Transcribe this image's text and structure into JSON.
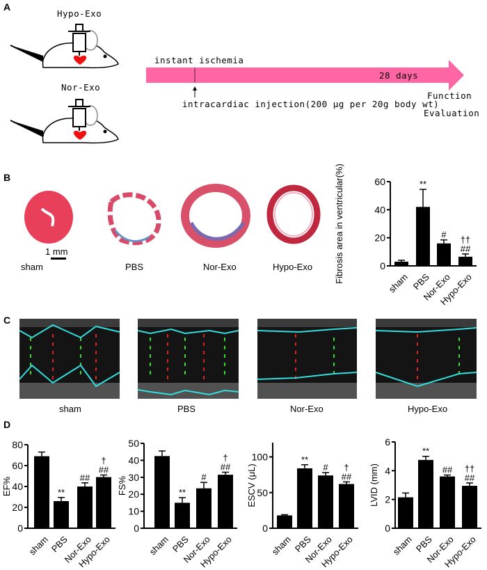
{
  "panels": {
    "a": "A",
    "b": "B",
    "c": "C",
    "d": "D"
  },
  "panel_a": {
    "group_top": "Hypo-Exo",
    "group_bottom": "Nor-Exo",
    "timeline_start": "instant ischemia",
    "timeline_duration": "28 days",
    "injection_note": "intracardiac injection(200 μg per 20g body wt)",
    "endpoint_line1": "Function",
    "endpoint_line2": "Evaluation",
    "timeline_color": "#ff66a3",
    "heart_color": "#ee1111"
  },
  "panel_b": {
    "scale_bar": "1 mm",
    "sections": [
      "sham",
      "PBS",
      "Nor-Exo",
      "Hypo-Exo"
    ]
  },
  "panel_c": {
    "echo_labels": [
      "sham",
      "PBS",
      "Nor-Exo",
      "Hypo-Exo"
    ],
    "trace_color": "#33dddd"
  },
  "chart_data": [
    {
      "id": "fibrosis",
      "type": "bar",
      "categories": [
        "sham",
        "PBS",
        "Nor-Exo",
        "Hypo-Exo"
      ],
      "values": [
        3,
        42,
        16,
        6.5
      ],
      "errors": [
        1,
        12.5,
        2.5,
        2
      ],
      "annotations": [
        "",
        "**",
        "#",
        "††\n##"
      ],
      "ylabel": "Fibrosis area in ventricular(%)",
      "ylim": [
        0,
        60
      ],
      "yticks": [
        0,
        20,
        40,
        60
      ]
    },
    {
      "id": "ef",
      "type": "bar",
      "categories": [
        "sham",
        "PBS",
        "Nor-Exo",
        "Hypo-Exo"
      ],
      "values": [
        69,
        26,
        40,
        49
      ],
      "errors": [
        4,
        3.5,
        3.5,
        2
      ],
      "annotations": [
        "",
        "**",
        "##",
        "†\n##"
      ],
      "ylabel": "EF%",
      "ylim": [
        0,
        80
      ],
      "yticks": [
        0,
        20,
        40,
        60,
        80
      ]
    },
    {
      "id": "fs",
      "type": "bar",
      "categories": [
        "sham",
        "PBS",
        "Nor-Exo",
        "Hypo-Exo"
      ],
      "values": [
        42.5,
        15,
        23.5,
        31.5
      ],
      "errors": [
        3,
        3,
        3.5,
        1.5
      ],
      "annotations": [
        "",
        "**",
        "#",
        "†\n##"
      ],
      "ylabel": "FS%",
      "ylim": [
        0,
        50
      ],
      "yticks": [
        0,
        10,
        20,
        30,
        40,
        50
      ]
    },
    {
      "id": "escv",
      "type": "bar",
      "categories": [
        "sham",
        "PBS",
        "Nor-Exo",
        "Hypo-Exo"
      ],
      "values": [
        18,
        84,
        74,
        62
      ],
      "errors": [
        1,
        5,
        4,
        3
      ],
      "annotations": [
        "",
        "**",
        "#",
        "†\n##"
      ],
      "ylabel": "ESCV (μL)",
      "ylim": [
        0,
        120
      ],
      "yticks": [
        0,
        50,
        100
      ]
    },
    {
      "id": "lvid",
      "type": "bar",
      "categories": [
        "sham",
        "PBS",
        "Nor-Exo",
        "Hypo-Exo"
      ],
      "values": [
        2.15,
        4.75,
        3.6,
        2.95
      ],
      "errors": [
        0.3,
        0.25,
        0.1,
        0.2
      ],
      "annotations": [
        "",
        "**",
        "##",
        "††\n##"
      ],
      "ylabel": "LVID (mm)",
      "ylim": [
        0,
        6
      ],
      "yticks": [
        0,
        2,
        4,
        6
      ]
    }
  ]
}
